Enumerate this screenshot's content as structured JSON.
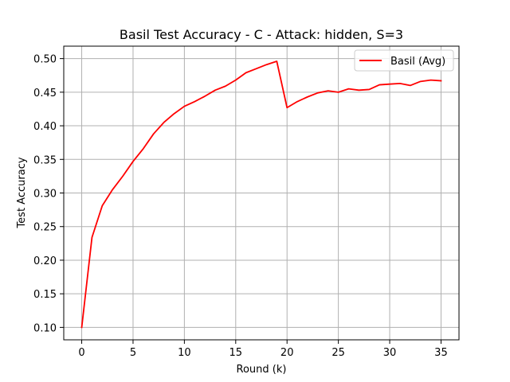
{
  "chart_data": {
    "type": "line",
    "title": "Basil Test Accuracy - C - Attack: hidden, S=3",
    "xlabel": "Round (k)",
    "ylabel": "Test Accuracy",
    "xlim": [
      -1.75,
      36.75
    ],
    "ylim": [
      0.0815,
      0.5185
    ],
    "x_ticks": [
      0,
      5,
      10,
      15,
      20,
      25,
      30,
      35
    ],
    "x_tick_labels": [
      "0",
      "5",
      "10",
      "15",
      "20",
      "25",
      "30",
      "35"
    ],
    "y_ticks": [
      0.1,
      0.15,
      0.2,
      0.25,
      0.3,
      0.35,
      0.4,
      0.45,
      0.5
    ],
    "y_tick_labels": [
      "0.10",
      "0.15",
      "0.20",
      "0.25",
      "0.30",
      "0.35",
      "0.40",
      "0.45",
      "0.50"
    ],
    "grid": true,
    "legend_position": "top-right",
    "series": [
      {
        "name": "Basil (Avg)",
        "color": "#ff0000",
        "x": [
          0,
          1,
          2,
          3,
          4,
          5,
          6,
          7,
          8,
          9,
          10,
          11,
          12,
          13,
          14,
          15,
          16,
          17,
          18,
          19,
          20,
          21,
          22,
          23,
          24,
          25,
          26,
          27,
          28,
          29,
          30,
          31,
          32,
          33,
          34,
          35
        ],
        "values": [
          0.1,
          0.234,
          0.281,
          0.305,
          0.325,
          0.347,
          0.366,
          0.388,
          0.405,
          0.418,
          0.429,
          0.436,
          0.444,
          0.453,
          0.459,
          0.468,
          0.479,
          0.485,
          0.491,
          0.496,
          0.427,
          0.436,
          0.443,
          0.449,
          0.452,
          0.45,
          0.455,
          0.453,
          0.454,
          0.461,
          0.462,
          0.463,
          0.46,
          0.466,
          0.468,
          0.467
        ]
      }
    ]
  }
}
